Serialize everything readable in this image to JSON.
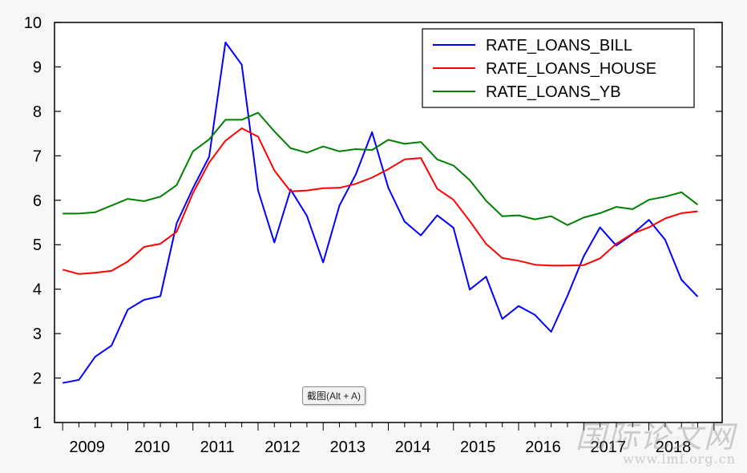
{
  "chart_data": {
    "type": "line",
    "title": "",
    "xlabel": "",
    "ylabel": "",
    "ylim": [
      1,
      10
    ],
    "yticks": [
      "1",
      "2",
      "3",
      "4",
      "5",
      "6",
      "7",
      "8",
      "9",
      "10"
    ],
    "year_labels": [
      "2009",
      "2010",
      "2011",
      "2012",
      "2013",
      "2014",
      "2015",
      "2016",
      "2017",
      "2018"
    ],
    "x_start": "2009Q1",
    "x_frequency": "quarterly",
    "grid": false,
    "legend_position": "top-right",
    "series": [
      {
        "name": "RATE_LOANS_BILL",
        "color": "#0000ff",
        "values": [
          1.89,
          1.96,
          2.48,
          2.73,
          3.54,
          3.76,
          3.84,
          5.48,
          6.27,
          6.98,
          9.55,
          9.05,
          6.22,
          5.05,
          6.24,
          5.65,
          4.6,
          5.88,
          6.58,
          7.53,
          6.28,
          5.52,
          5.21,
          5.66,
          5.38,
          3.99,
          4.28,
          3.33,
          3.62,
          3.42,
          3.04,
          3.85,
          4.74,
          5.39,
          4.98,
          5.24,
          5.56,
          5.11,
          4.21,
          3.83
        ]
      },
      {
        "name": "RATE_LOANS_HOUSE",
        "color": "#ff0000",
        "values": [
          4.44,
          4.34,
          4.37,
          4.41,
          4.62,
          4.95,
          5.02,
          5.29,
          6.16,
          6.85,
          7.34,
          7.62,
          7.43,
          6.67,
          6.2,
          6.22,
          6.27,
          6.28,
          6.37,
          6.51,
          6.7,
          6.92,
          6.95,
          6.26,
          6.01,
          5.53,
          5.02,
          4.7,
          4.64,
          4.55,
          4.53,
          4.53,
          4.54,
          4.69,
          5.02,
          5.25,
          5.39,
          5.59,
          5.71,
          5.75
        ]
      },
      {
        "name": "RATE_LOANS_YB",
        "color": "#008000",
        "values": [
          5.7,
          5.7,
          5.73,
          5.88,
          6.03,
          5.98,
          6.08,
          6.34,
          7.1,
          7.37,
          7.81,
          7.81,
          7.97,
          7.55,
          7.17,
          7.07,
          7.21,
          7.1,
          7.15,
          7.13,
          7.36,
          7.27,
          7.31,
          6.92,
          6.78,
          6.45,
          5.99,
          5.64,
          5.66,
          5.57,
          5.64,
          5.44,
          5.61,
          5.71,
          5.85,
          5.8,
          6.01,
          6.08,
          6.18,
          5.9
        ]
      }
    ]
  },
  "tooltip_text": "截图(Alt + A)",
  "watermark": {
    "line1": "国际论文网",
    "line2": "www.lmf.org.cn"
  }
}
